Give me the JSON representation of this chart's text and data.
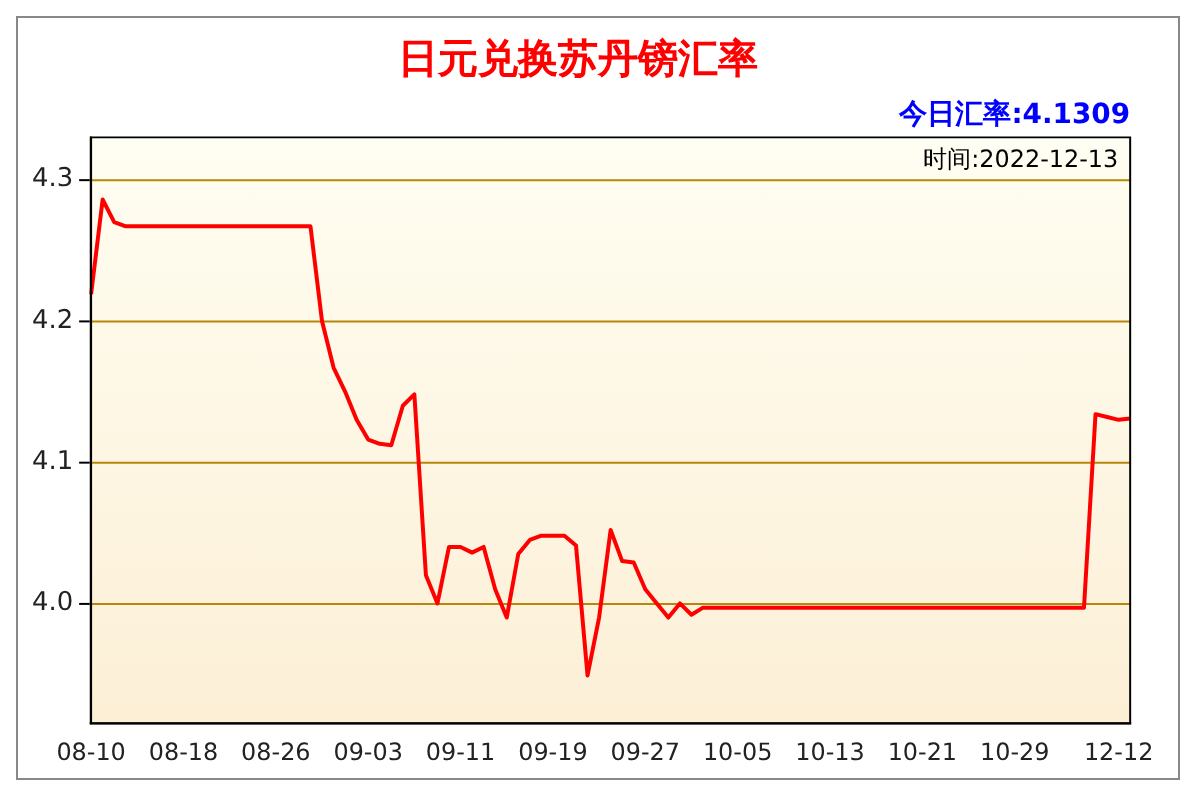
{
  "chart_data": {
    "type": "line",
    "title": "日元兑换苏丹镑汇率",
    "annotations": [
      "今日汇率:4.1309",
      "时间:2022-12-13"
    ],
    "categories": [
      "08-10",
      null,
      null,
      null,
      null,
      null,
      null,
      null,
      "08-18",
      null,
      null,
      null,
      null,
      null,
      null,
      null,
      "08-26",
      null,
      null,
      null,
      null,
      null,
      null,
      null,
      "09-03",
      null,
      null,
      null,
      null,
      null,
      null,
      null,
      "09-11",
      null,
      null,
      null,
      null,
      null,
      null,
      null,
      "09-19",
      null,
      null,
      null,
      null,
      null,
      null,
      null,
      "09-27",
      null,
      null,
      null,
      null,
      null,
      null,
      null,
      "10-05",
      null,
      null,
      null,
      null,
      null,
      null,
      null,
      "10-13",
      null,
      null,
      null,
      null,
      null,
      null,
      null,
      "10-21",
      null,
      null,
      null,
      null,
      null,
      null,
      null,
      "10-29",
      null,
      null,
      null,
      null,
      null,
      null,
      null,
      null,
      "12-12",
      null
    ],
    "series": [
      {
        "color": "#ff0000",
        "values": [
          4.219,
          4.286,
          4.27,
          4.267,
          4.267,
          4.267,
          4.267,
          4.267,
          4.267,
          4.267,
          4.267,
          4.267,
          4.267,
          4.267,
          4.267,
          4.267,
          4.267,
          4.267,
          4.267,
          4.267,
          4.2,
          4.167,
          4.15,
          4.13,
          4.116,
          4.113,
          4.112,
          4.14,
          4.148,
          4.02,
          4.0,
          4.04,
          4.04,
          4.036,
          4.04,
          4.01,
          3.99,
          4.035,
          4.045,
          4.048,
          4.048,
          4.048,
          4.041,
          3.949,
          3.99,
          4.052,
          4.03,
          4.029,
          4.01,
          4.0,
          3.99,
          4.0,
          3.992,
          3.997,
          3.997,
          3.997,
          3.997,
          3.997,
          3.997,
          3.997,
          3.997,
          3.997,
          3.997,
          3.997,
          3.997,
          3.997,
          3.997,
          3.997,
          3.997,
          3.997,
          3.997,
          3.997,
          3.997,
          3.997,
          3.997,
          3.997,
          3.997,
          3.997,
          3.997,
          3.997,
          3.997,
          3.997,
          3.997,
          3.997,
          3.997,
          3.997,
          3.997,
          4.134,
          4.132,
          4.13,
          4.131
        ]
      }
    ],
    "ylim": [
      3.915,
      4.33
    ],
    "yticks": [
      {
        "value": 4,
        "label": "4.0"
      },
      4.1,
      4.2,
      4.3
    ],
    "grid": "y",
    "legend": false,
    "marker": "none",
    "line_style": "solid"
  }
}
